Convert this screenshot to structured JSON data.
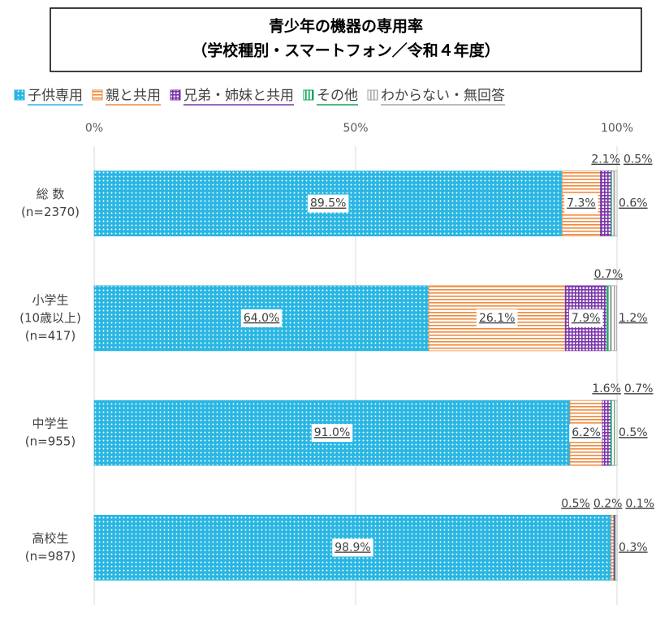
{
  "chart_data": {
    "type": "stacked-bar-horizontal",
    "title": [
      "青少年の機器の専用率",
      "（学校種別・スマートフォン／令和４年度）"
    ],
    "categories": [
      [
        "総 数",
        "(n=2370)"
      ],
      [
        "小学生",
        "(10歳以上)",
        "(n=417)"
      ],
      [
        "中学生",
        "(n=955)"
      ],
      [
        "高校生",
        "(n=987)"
      ]
    ],
    "xlim": [
      0,
      100
    ],
    "xticks": [
      {
        "value": 0,
        "label": "0%"
      },
      {
        "value": 50,
        "label": "50%"
      },
      {
        "value": 100,
        "label": "100%"
      }
    ],
    "grid": true,
    "legend": "top",
    "series": [
      {
        "name": "子供専用",
        "color": "#29b6e3",
        "pattern": "dots",
        "values": [
          89.5,
          64.0,
          91.0,
          98.9
        ],
        "value_labels": [
          "89.5%",
          "64.0%",
          "91.0%",
          "98.9%"
        ]
      },
      {
        "name": "親と共用",
        "color": "#ef8a3e",
        "pattern": "hlines",
        "values": [
          7.3,
          26.1,
          6.2,
          0.5
        ],
        "value_labels": [
          "7.3%",
          "26.1%",
          "6.2%",
          "0.5%"
        ]
      },
      {
        "name": "兄弟・姉妹と共用",
        "color": "#7a35a8",
        "pattern": "grid",
        "values": [
          2.1,
          7.9,
          1.6,
          0.2
        ],
        "value_labels": [
          "2.1%",
          "7.9%",
          "1.6%",
          "0.2%"
        ]
      },
      {
        "name": "その他",
        "color": "#12a55a",
        "pattern": "vlines",
        "values": [
          0.5,
          0.7,
          0.7,
          0.1
        ],
        "value_labels": [
          "0.5%",
          "0.7%",
          "0.7%",
          "0.1%"
        ]
      },
      {
        "name": "わからない・無回答",
        "color": "#a6a6a6",
        "pattern": "vlines",
        "values": [
          0.6,
          1.2,
          0.5,
          0.3
        ],
        "value_labels": [
          "0.6%",
          "1.2%",
          "0.5%",
          "0.3%"
        ]
      }
    ]
  }
}
